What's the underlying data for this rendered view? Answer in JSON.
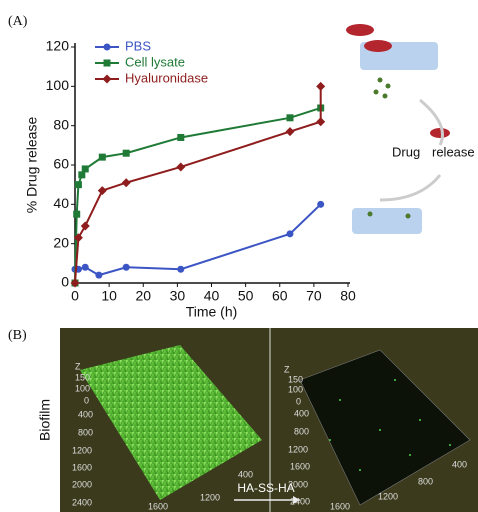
{
  "chart_data": {
    "type": "line",
    "panel_label": "(A)",
    "x_label": "Time (h)",
    "y_label": "% Drug release",
    "xlim": [
      0,
      80
    ],
    "xticks": [
      0,
      10,
      20,
      30,
      40,
      50,
      60,
      70,
      80
    ],
    "ylim": [
      0,
      120
    ],
    "yticks": [
      0,
      20,
      40,
      60,
      80,
      100,
      120
    ],
    "legend": "top-left",
    "series": [
      {
        "name": "PBS",
        "color": "#3b55c4",
        "marker": "circle",
        "x": [
          0,
          1,
          3,
          7,
          15,
          31,
          63,
          72
        ],
        "values": [
          7,
          7,
          8,
          4,
          8,
          7,
          25,
          40
        ]
      },
      {
        "name": "Cell lysate",
        "color": "#1e7a35",
        "marker": "square",
        "x": [
          0,
          0.5,
          1,
          2,
          3,
          8,
          15,
          31,
          63,
          72
        ],
        "values": [
          0,
          35,
          50,
          55,
          58,
          64,
          66,
          74,
          84,
          89
        ]
      },
      {
        "name": "Hyaluronidase",
        "color": "#8f1d1d",
        "marker": "diamond",
        "x": [
          0,
          1,
          3,
          8,
          15,
          31,
          63,
          72,
          72
        ],
        "values": [
          0,
          23,
          29,
          47,
          51,
          59,
          77,
          82,
          100
        ]
      }
    ]
  },
  "cartoon": {
    "word1": "Drug",
    "word2": "release"
  },
  "panel_b": {
    "label": "(B)",
    "row_label": "Biofilm",
    "arrow_label": "HA-SS-HA",
    "left_labels": [
      "Z",
      "150",
      "100",
      "0",
      "400",
      "800",
      "1200",
      "1600",
      "2000",
      "2400",
      "400",
      "1200",
      "1600"
    ],
    "right_labels": [
      "Z",
      "150",
      "100",
      "0",
      "400",
      "800",
      "1200",
      "1600",
      "2000",
      "2400",
      "1600",
      "1200",
      "800",
      "400"
    ]
  }
}
